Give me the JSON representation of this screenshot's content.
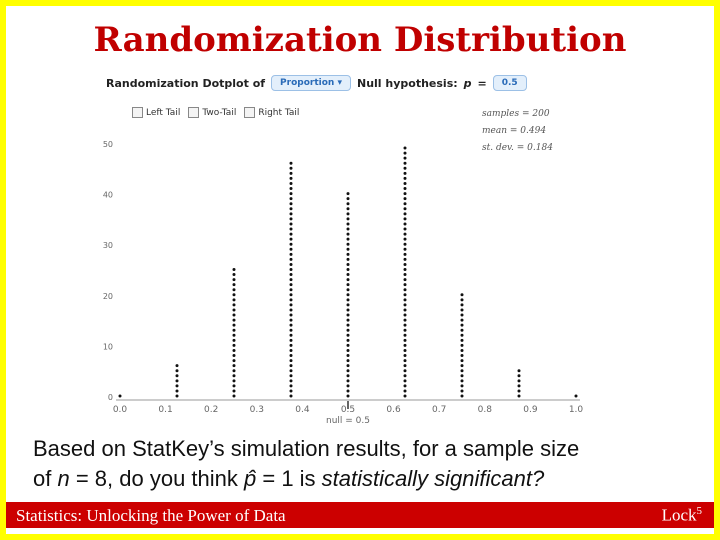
{
  "slide": {
    "title": "Randomization Distribution",
    "footer_left": "Statistics: Unlocking the Power of Data",
    "footer_right": "Lock",
    "footer_sup": "5",
    "question_line1": "Based on StatKey’s simulation results, for a sample size",
    "question_line2_a": "of ",
    "question_line2_n": "n",
    "question_line2_b": " = 8, do you think ",
    "question_line2_p": "p̂",
    "question_line2_c": " = 1 is ",
    "question_line2_d": "statistically significant?",
    "colors": {
      "border": "#ffff00",
      "title": "#c00000",
      "footer": "#cc0000"
    }
  },
  "panel": {
    "header_label": "Randomization Dotplot of",
    "dropdown_value": "Proportion",
    "dropdown_icon": "caret-down-icon",
    "null_label": "Null hypothesis:",
    "null_symbol": "p",
    "null_eq": "=",
    "null_value": "0.5",
    "tail_options": [
      "Left Tail",
      "Two-Tail",
      "Right Tail"
    ],
    "stats": [
      "samples = 200",
      "mean = 0.494",
      "st. dev. = 0.184"
    ],
    "null_marker_label": "null = 0.5"
  },
  "chart_data": {
    "type": "scatter",
    "subtype": "dotplot",
    "x_ticks": [
      "0.0",
      "0.1",
      "0.2",
      "0.3",
      "0.4",
      "0.5",
      "0.6",
      "0.7",
      "0.8",
      "0.9",
      "1.0"
    ],
    "y_ticks": [
      "0",
      "10",
      "20",
      "30",
      "40",
      "50"
    ],
    "xlim": [
      0,
      1
    ],
    "ylim": [
      0,
      50
    ],
    "grid": false,
    "points": [
      {
        "x": 0.0,
        "count": 1
      },
      {
        "x": 0.125,
        "count": 7
      },
      {
        "x": 0.25,
        "count": 26
      },
      {
        "x": 0.375,
        "count": 47
      },
      {
        "x": 0.5,
        "count": 41
      },
      {
        "x": 0.625,
        "count": 50
      },
      {
        "x": 0.75,
        "count": 21
      },
      {
        "x": 0.875,
        "count": 6
      },
      {
        "x": 1.0,
        "count": 1
      }
    ],
    "null_value": 0.5
  }
}
